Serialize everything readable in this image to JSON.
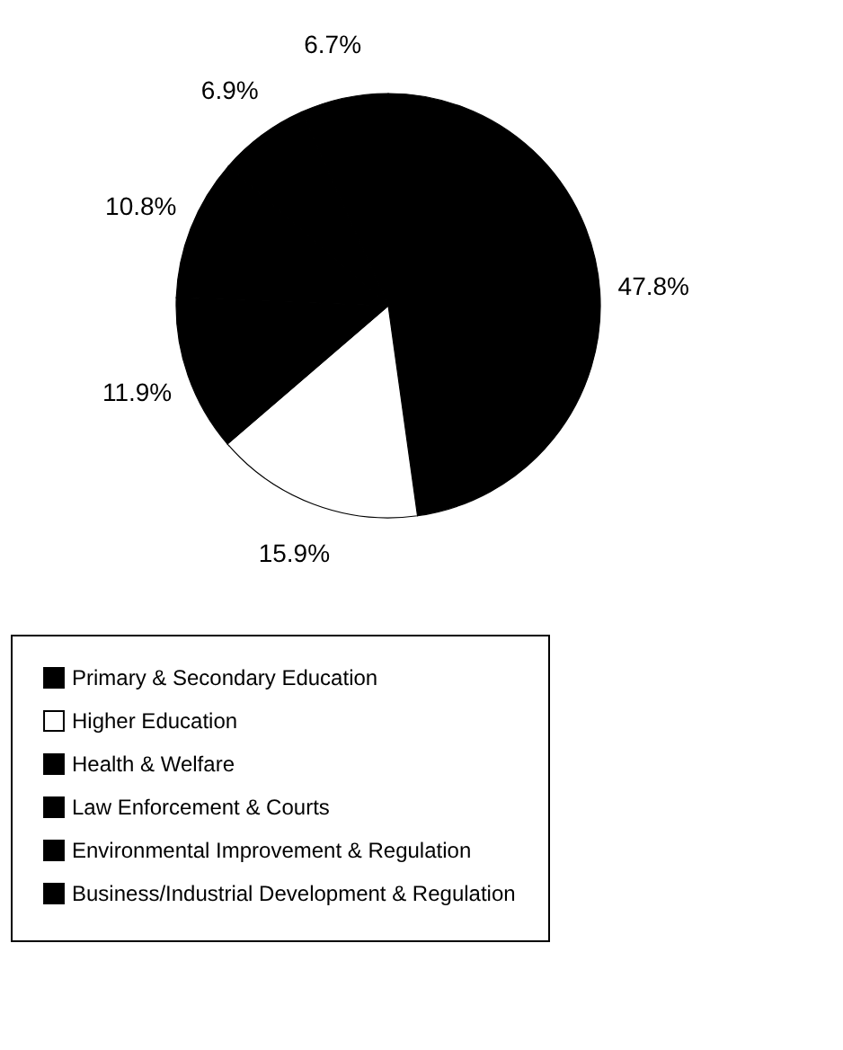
{
  "chart_data": {
    "type": "pie",
    "categories": [
      "Primary & Secondary Education",
      "Higher Education",
      "Health & Welfare",
      "Law Enforcement & Courts",
      "Environmental Improvement & Regulation",
      "Business/Industrial Development & Regulation"
    ],
    "values": [
      47.8,
      15.9,
      11.9,
      10.8,
      6.9,
      6.7
    ],
    "value_labels": [
      "47.8%",
      "15.9%",
      "11.9%",
      "10.8%",
      "6.9%",
      "6.7%"
    ],
    "colors": [
      "#000000",
      "#ffffff",
      "#000000",
      "#000000",
      "#000000",
      "#000000"
    ],
    "legend": "bottom"
  }
}
